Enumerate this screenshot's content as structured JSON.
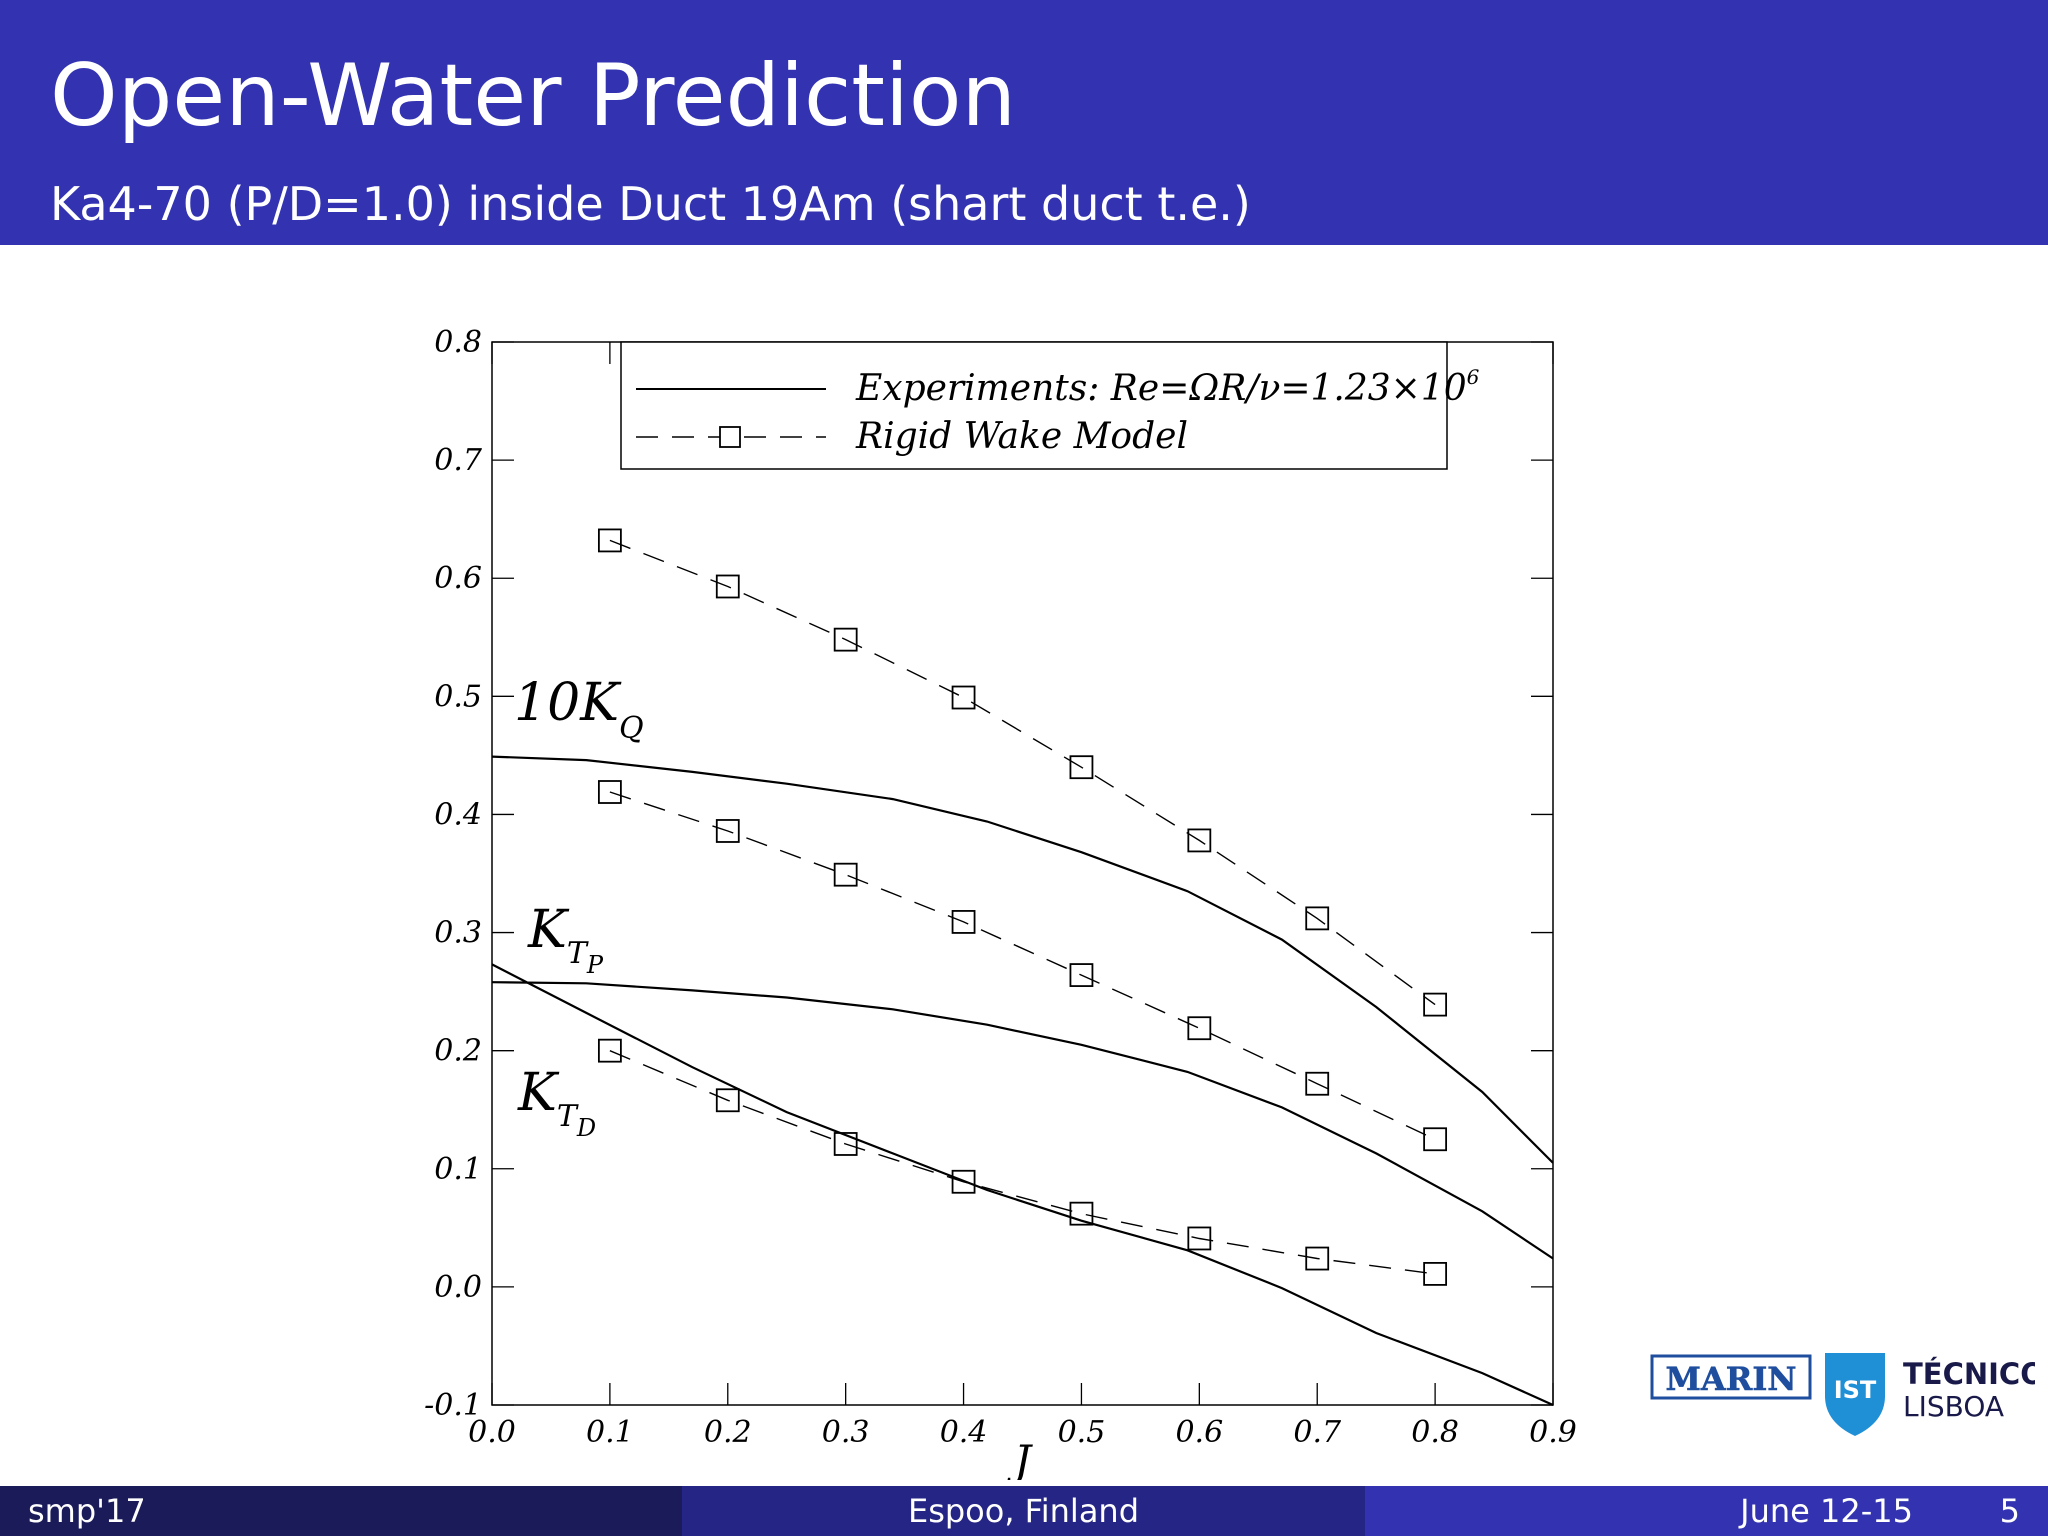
{
  "slide": {
    "title": "Open-Water Prediction",
    "subtitle": "Ka4-70 (P/D=1.0) inside Duct 19Am (shart duct t.e.)"
  },
  "footer": {
    "left": "smp'17",
    "center": "Espoo, Finland",
    "date": "June 12-15",
    "page": "5"
  },
  "logos": {
    "marin": "MARIN",
    "ist_mark": "IST",
    "tecnico_line1": "TÉCNICO",
    "tecnico_line2": "LISBOA"
  },
  "colors": {
    "header_bg": "#3333b2",
    "footer_left": "#1b1b5a",
    "footer_mid": "#252585",
    "footer_right": "#3333b2",
    "marin_blue": "#1f4e9e",
    "ist_blue": "#1f8fd6"
  },
  "chart_data": {
    "type": "line",
    "xlabel": "J",
    "ylabel": "",
    "xlim": [
      0.0,
      0.9
    ],
    "ylim": [
      -0.1,
      0.8
    ],
    "xticks": [
      "0.0",
      "0.1",
      "0.2",
      "0.3",
      "0.4",
      "0.5",
      "0.6",
      "0.7",
      "0.8",
      "0.9"
    ],
    "yticks": [
      "-0.1",
      "0.0",
      "0.1",
      "0.2",
      "0.3",
      "0.4",
      "0.5",
      "0.6",
      "0.7",
      "0.8"
    ],
    "legend": {
      "placement": "top-right",
      "experiments": "Experiments: Re=ΩR/ν=1.23×10",
      "experiments_exp": "6",
      "model": "Rigid Wake Model"
    },
    "curve_labels": {
      "kq_main": "10K",
      "kq_sub": "Q",
      "ktp_main": "K",
      "ktp_sub": "T",
      "ktp_subsub": "P",
      "ktd_main": "K",
      "ktd_sub": "T",
      "ktd_subsub": "D"
    },
    "series": [
      {
        "name": "10KQ Experiments",
        "style": "solid",
        "x": [
          0.0,
          0.08,
          0.17,
          0.25,
          0.34,
          0.42,
          0.5,
          0.59,
          0.67,
          0.75,
          0.84,
          0.9
        ],
        "y": [
          0.449,
          0.446,
          0.436,
          0.426,
          0.413,
          0.394,
          0.368,
          0.335,
          0.294,
          0.237,
          0.165,
          0.105
        ]
      },
      {
        "name": "KTP Experiments",
        "style": "solid",
        "x": [
          0.0,
          0.08,
          0.17,
          0.25,
          0.34,
          0.42,
          0.5,
          0.59,
          0.67,
          0.75,
          0.84,
          0.9
        ],
        "y": [
          0.258,
          0.257,
          0.251,
          0.245,
          0.235,
          0.222,
          0.205,
          0.182,
          0.152,
          0.113,
          0.064,
          0.024
        ]
      },
      {
        "name": "KTD Experiments",
        "style": "solid",
        "x": [
          0.0,
          0.08,
          0.17,
          0.25,
          0.34,
          0.42,
          0.5,
          0.59,
          0.67,
          0.75,
          0.84,
          0.9
        ],
        "y": [
          0.273,
          0.232,
          0.186,
          0.148,
          0.113,
          0.082,
          0.056,
          0.031,
          -0.001,
          -0.039,
          -0.073,
          -0.1
        ]
      },
      {
        "name": "10KQ Rigid Wake Model",
        "style": "dashed-square",
        "x": [
          0.1,
          0.2,
          0.3,
          0.4,
          0.5,
          0.6,
          0.7,
          0.8
        ],
        "y": [
          0.632,
          0.593,
          0.548,
          0.499,
          0.44,
          0.378,
          0.312,
          0.239
        ]
      },
      {
        "name": "KTP Rigid Wake Model",
        "style": "dashed-square",
        "x": [
          0.1,
          0.2,
          0.3,
          0.4,
          0.5,
          0.6,
          0.7,
          0.8
        ],
        "y": [
          0.419,
          0.386,
          0.349,
          0.309,
          0.264,
          0.219,
          0.172,
          0.125
        ]
      },
      {
        "name": "KTD Rigid Wake Model",
        "style": "dashed-square",
        "x": [
          0.1,
          0.2,
          0.3,
          0.4,
          0.5,
          0.6,
          0.7,
          0.8
        ],
        "y": [
          0.2,
          0.158,
          0.121,
          0.089,
          0.062,
          0.041,
          0.024,
          0.011
        ]
      }
    ]
  }
}
